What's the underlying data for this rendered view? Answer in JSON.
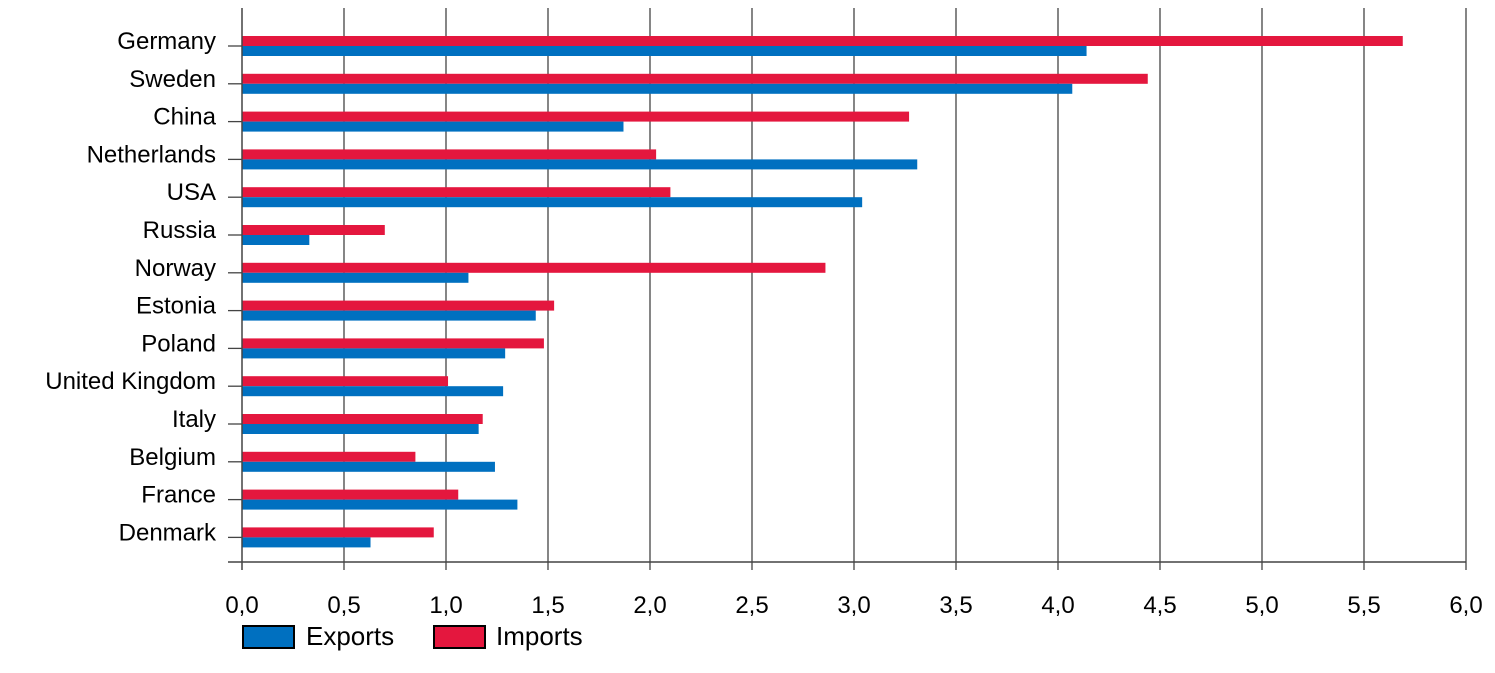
{
  "chart_data": {
    "type": "bar",
    "orientation": "horizontal",
    "categories": [
      "Germany",
      "Sweden",
      "China",
      "Netherlands",
      "USA",
      "Russia",
      "Norway",
      "Estonia",
      "Poland",
      "United Kingdom",
      "Italy",
      "Belgium",
      "France",
      "Denmark"
    ],
    "series": [
      {
        "name": "Imports",
        "color": "#e4173e",
        "values": [
          5.69,
          4.44,
          3.27,
          2.03,
          2.1,
          0.7,
          2.86,
          1.53,
          1.48,
          1.01,
          1.18,
          0.85,
          1.06,
          0.94
        ]
      },
      {
        "name": "Exports",
        "color": "#0070c0",
        "values": [
          4.14,
          4.07,
          1.87,
          3.31,
          3.04,
          0.33,
          1.11,
          1.44,
          1.29,
          1.28,
          1.16,
          1.24,
          1.35,
          0.63
        ]
      }
    ],
    "xlim": [
      0,
      6
    ],
    "xticks": [
      "0,0",
      "0,5",
      "1,0",
      "1,5",
      "2,0",
      "2,5",
      "3,0",
      "3,5",
      "4,0",
      "4,5",
      "5,0",
      "5,5",
      "6,0"
    ],
    "grid": true,
    "legend": {
      "placement": "bottom-left",
      "entries": [
        "Exports",
        "Imports"
      ]
    },
    "title": "",
    "xlabel": "",
    "ylabel": ""
  }
}
